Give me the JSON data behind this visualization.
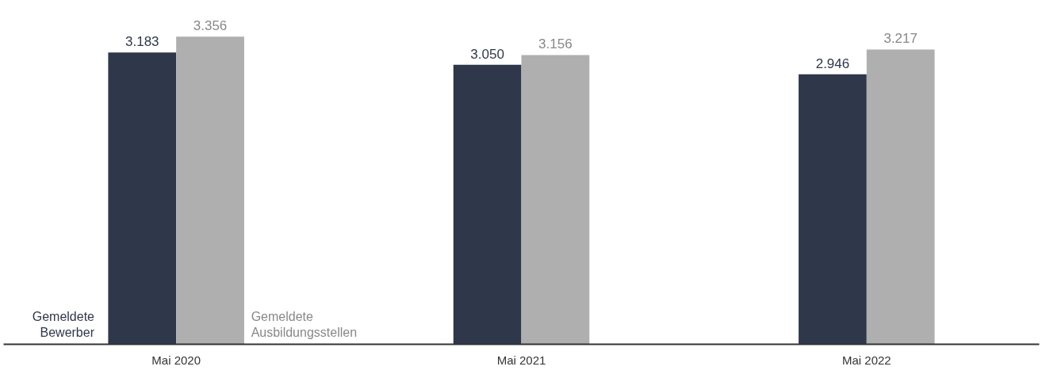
{
  "chart_data": {
    "type": "bar",
    "categories": [
      "Mai 2020",
      "Mai 2021",
      "Mai 2022"
    ],
    "legend": false,
    "series": [
      {
        "name": "Gemeldete Bewerber",
        "color": "#2f374b",
        "values": [
          3183,
          3050,
          2946
        ],
        "value_labels": [
          "3.183",
          "3.050",
          "2.946"
        ]
      },
      {
        "name": "Gemeldete Ausbildungsstellen",
        "color": "#afafaf",
        "values": [
          3356,
          3156,
          3217
        ],
        "value_labels": [
          "3.356",
          "3.156",
          "3.217"
        ]
      }
    ]
  }
}
